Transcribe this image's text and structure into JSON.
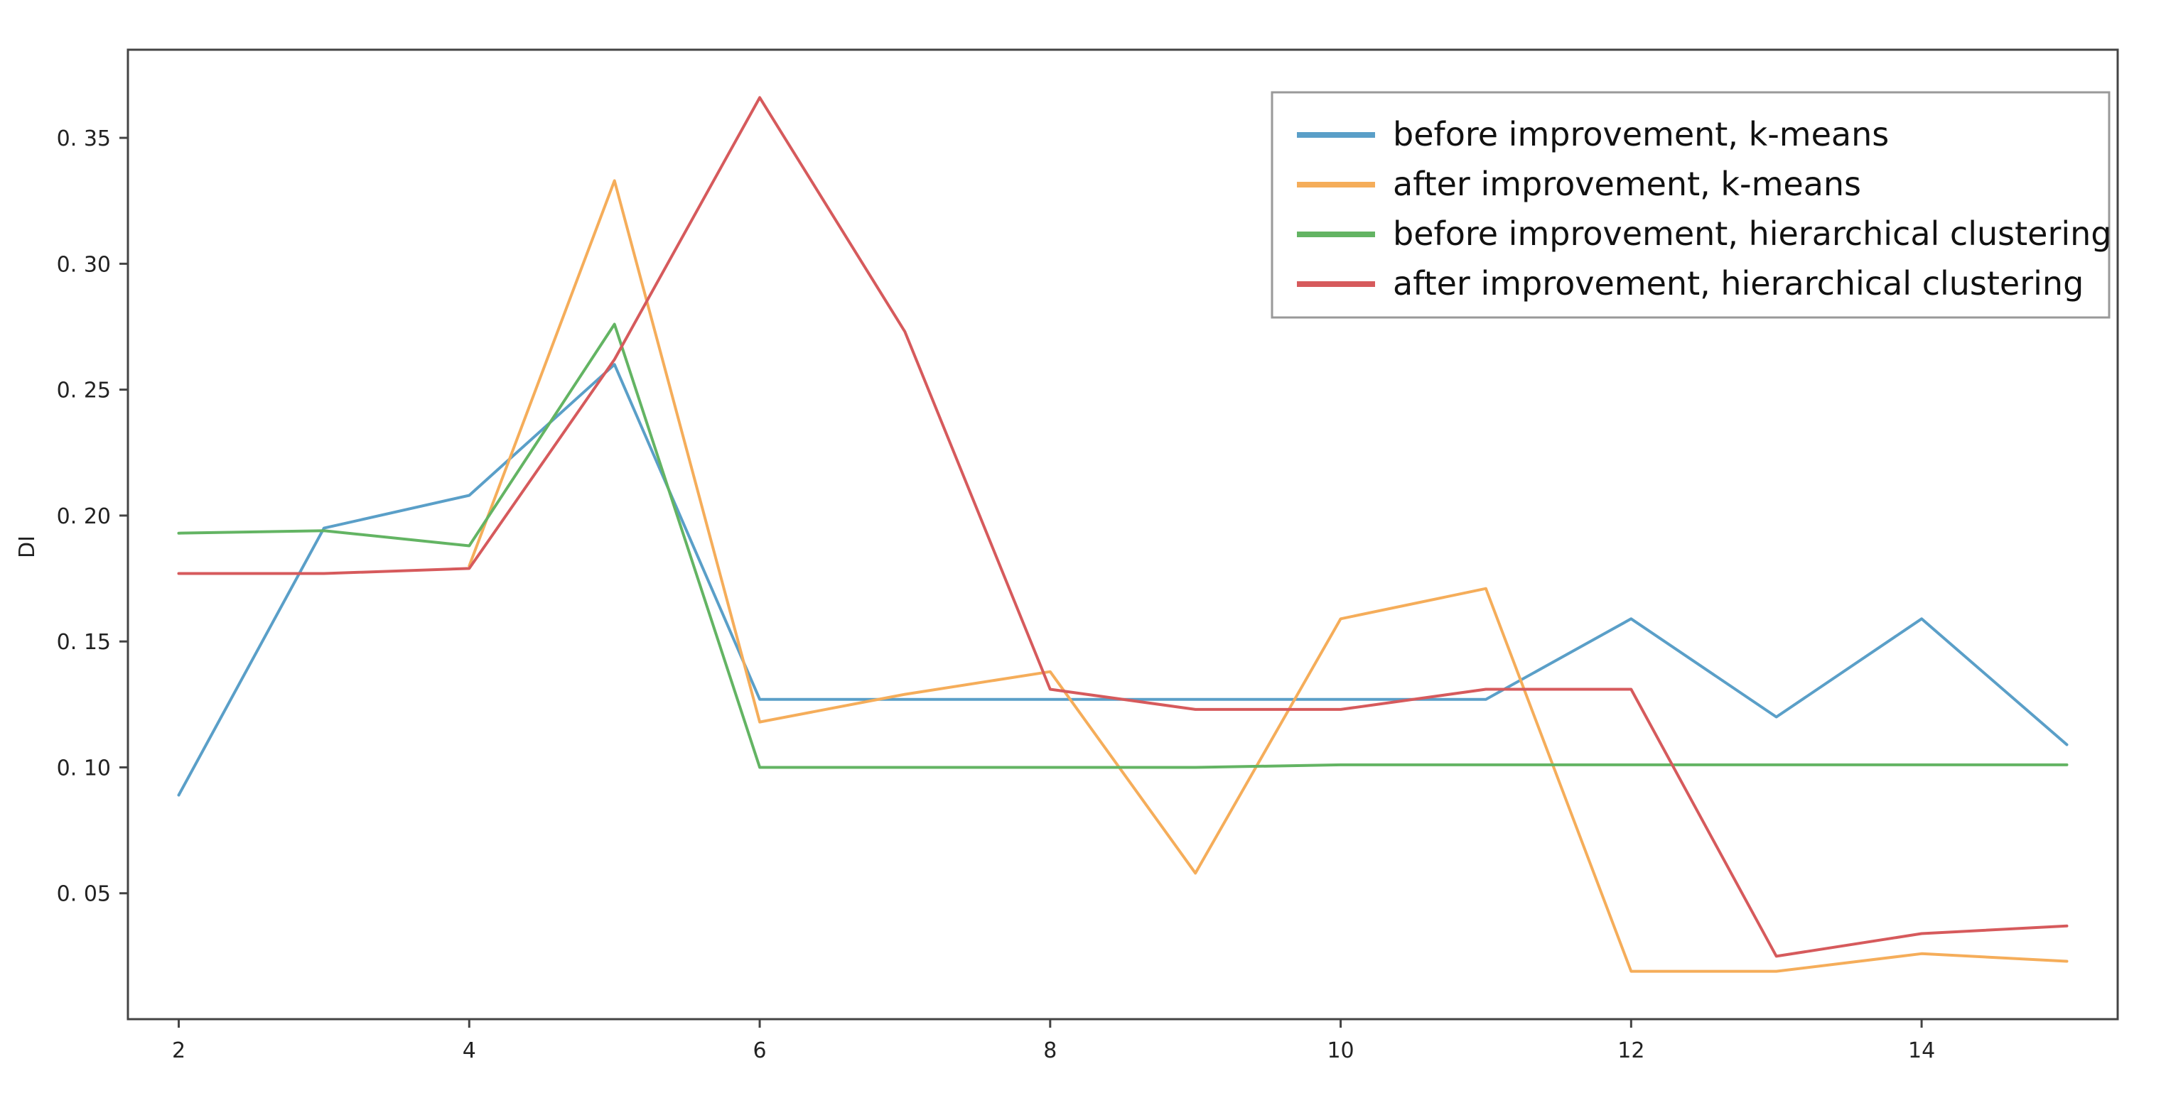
{
  "chart_data": {
    "type": "line",
    "ylabel": "DI",
    "xlabel": "",
    "xlim": [
      1.65,
      15.35
    ],
    "ylim": [
      0.0,
      0.385
    ],
    "x_ticks": [
      2,
      4,
      6,
      8,
      10,
      12,
      14
    ],
    "y_ticks": [
      0.05,
      0.1,
      0.15,
      0.2,
      0.25,
      0.3,
      0.35
    ],
    "y_tick_labels": [
      "0. 05",
      "0. 10",
      "0. 15",
      "0. 20",
      "0. 25",
      "0. 30",
      "0. 35"
    ],
    "grid": false,
    "legend_position": "top-right",
    "x": [
      2,
      3,
      4,
      5,
      6,
      7,
      8,
      9,
      10,
      11,
      12,
      13,
      14,
      15
    ],
    "series": [
      {
        "name": "before improvement, k-means",
        "color": "#5a9fc8",
        "values": [
          0.089,
          0.195,
          0.208,
          0.26,
          0.127,
          0.127,
          0.127,
          0.127,
          0.127,
          0.127,
          0.159,
          0.12,
          0.159,
          0.109
        ]
      },
      {
        "name": "after improvement, k-means",
        "color": "#f5ad5a",
        "values": [
          null,
          null,
          0.18,
          0.333,
          0.118,
          0.129,
          0.138,
          0.058,
          0.159,
          0.171,
          0.019,
          0.019,
          0.026,
          0.023
        ]
      },
      {
        "name": "before improvement, hierarchical clustering",
        "color": "#63b463",
        "values": [
          0.193,
          0.194,
          0.188,
          0.276,
          0.1,
          0.1,
          0.1,
          0.1,
          0.101,
          0.101,
          0.101,
          0.101,
          0.101,
          0.101
        ]
      },
      {
        "name": "after improvement, hierarchical clustering",
        "color": "#d65a5c",
        "values": [
          0.177,
          0.177,
          0.179,
          0.262,
          0.366,
          0.273,
          0.131,
          0.123,
          0.123,
          0.131,
          0.131,
          0.025,
          0.034,
          0.037
        ]
      }
    ]
  }
}
